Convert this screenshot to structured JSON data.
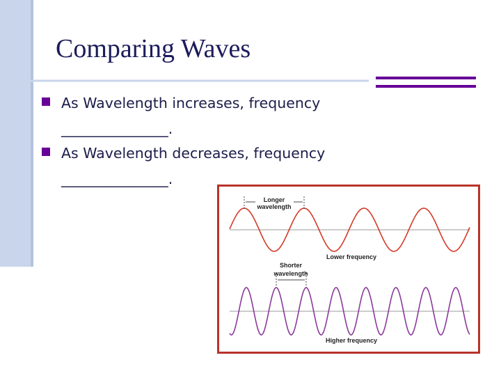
{
  "slide": {
    "title": "Comparing Waves",
    "bullets": [
      {
        "text": "As Wavelength increases, frequency",
        "blank": "_______________."
      },
      {
        "text": "As Wavelength decreases, frequency",
        "blank": "_______________."
      }
    ],
    "figure": {
      "top_label": [
        "Longer",
        "wavelength"
      ],
      "top_caption": "Lower frequency",
      "bottom_label": [
        "Shorter",
        "wavelength"
      ],
      "bottom_caption": "Higher frequency"
    }
  }
}
